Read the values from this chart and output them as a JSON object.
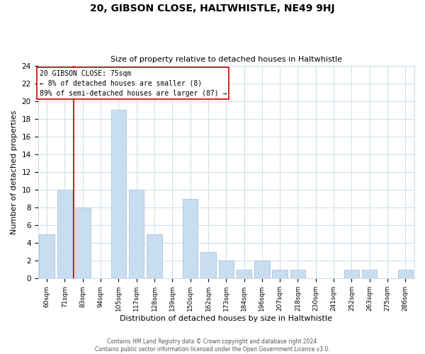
{
  "title": "20, GIBSON CLOSE, HALTWHISTLE, NE49 9HJ",
  "subtitle": "Size of property relative to detached houses in Haltwhistle",
  "xlabel": "Distribution of detached houses by size in Haltwhistle",
  "ylabel": "Number of detached properties",
  "bar_labels": [
    "60sqm",
    "71sqm",
    "83sqm",
    "94sqm",
    "105sqm",
    "117sqm",
    "128sqm",
    "139sqm",
    "150sqm",
    "162sqm",
    "173sqm",
    "184sqm",
    "196sqm",
    "207sqm",
    "218sqm",
    "230sqm",
    "241sqm",
    "252sqm",
    "263sqm",
    "275sqm",
    "286sqm"
  ],
  "bar_values": [
    5,
    10,
    8,
    0,
    19,
    10,
    5,
    0,
    9,
    3,
    2,
    1,
    2,
    1,
    1,
    0,
    0,
    1,
    1,
    0,
    1
  ],
  "bar_color": "#c9ddf0",
  "bar_edge_color": "#a8c4e0",
  "vline_color": "#cc0000",
  "annotation_title": "20 GIBSON CLOSE: 75sqm",
  "annotation_line1": "← 8% of detached houses are smaller (8)",
  "annotation_line2": "89% of semi-detached houses are larger (87) →",
  "annotation_box_color": "#ffffff",
  "annotation_box_edge": "#cc0000",
  "ylim": [
    0,
    24
  ],
  "yticks": [
    0,
    2,
    4,
    6,
    8,
    10,
    12,
    14,
    16,
    18,
    20,
    22,
    24
  ],
  "footer1": "Contains HM Land Registry data © Crown copyright and database right 2024.",
  "footer2": "Contains public sector information licensed under the Open Government Licence v3.0.",
  "bg_color": "#ffffff",
  "grid_color": "#c8d8e8"
}
